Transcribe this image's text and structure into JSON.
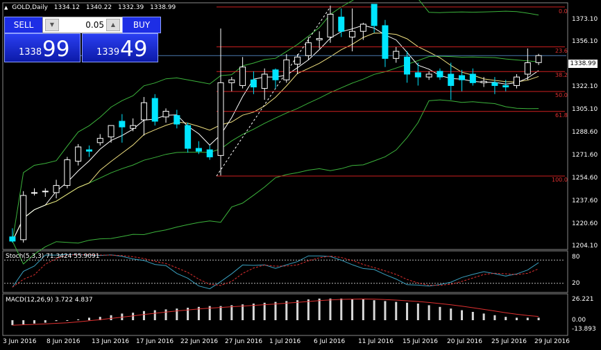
{
  "header": {
    "symbol": "GOLD,Daily",
    "open": "1334.12",
    "high": "1340.22",
    "low": "1332.39",
    "close": "1338.99"
  },
  "trade_panel": {
    "sell_label": "SELL",
    "buy_label": "BUY",
    "lot_value": "0.05",
    "sell_small": "1338",
    "sell_big": "99",
    "buy_small": "1339",
    "buy_big": "49"
  },
  "current_price_tag": "1338.99",
  "price_axis": [
    "1373.10",
    "1356.10",
    "1322.10",
    "1305.10",
    "1288.60",
    "1271.60",
    "1254.60",
    "1237.60",
    "1220.60",
    "1204.10"
  ],
  "fibonacci": [
    "0.0",
    "23.6",
    "38.2",
    "50.0",
    "61.8",
    "100.0"
  ],
  "stoch": {
    "label": "Stoch(5,3,3) 71.3424 55.9091",
    "levels": [
      "80",
      "20"
    ]
  },
  "macd": {
    "label": "MACD(12,26,9) 3.722 4.837",
    "levels": [
      "26.221",
      "0.00",
      "-13.893"
    ]
  },
  "date_axis": [
    "3 Jun 2016",
    "8 Jun 2016",
    "13 Jun 2016",
    "17 Jun 2016",
    "22 Jun 2016",
    "27 Jun 2016",
    "1 Jul 2016",
    "6 Jul 2016",
    "11 Jul 2016",
    "15 Jul 2016",
    "20 Jul 2016",
    "25 Jul 2016",
    "29 Jul 2016"
  ],
  "colors": {
    "bull": "#ffffff",
    "bear": "#00e5ff",
    "fib": "#d02020",
    "bands": "#3cb43c",
    "ma_fast": "#ffffff",
    "ma_slow": "#f0e080",
    "stoch_main": "#3aa0c0",
    "stoch_signal": "#e03030",
    "macd_hist": "#d8d8d8",
    "macd_signal": "#e03030"
  },
  "chart_data": {
    "type": "candlestick",
    "title": "GOLD,Daily",
    "ylim": [
      1204.1,
      1373.1
    ],
    "candles": [
      {
        "date": "2016-06-02",
        "o": 1212,
        "h": 1218,
        "l": 1208,
        "c": 1209
      },
      {
        "date": "2016-06-03",
        "o": 1210,
        "h": 1244,
        "l": 1208,
        "c": 1241
      },
      {
        "date": "2016-06-06",
        "o": 1243,
        "h": 1246,
        "l": 1241,
        "c": 1243
      },
      {
        "date": "2016-06-07",
        "o": 1244,
        "h": 1246,
        "l": 1240,
        "c": 1244
      },
      {
        "date": "2016-06-08",
        "o": 1243,
        "h": 1252,
        "l": 1239,
        "c": 1248
      },
      {
        "date": "2016-06-09",
        "o": 1248,
        "h": 1268,
        "l": 1246,
        "c": 1266
      },
      {
        "date": "2016-06-10",
        "o": 1265,
        "h": 1277,
        "l": 1262,
        "c": 1275
      },
      {
        "date": "2016-06-13",
        "o": 1273,
        "h": 1276,
        "l": 1268,
        "c": 1272
      },
      {
        "date": "2016-06-14",
        "o": 1278,
        "h": 1284,
        "l": 1276,
        "c": 1281
      },
      {
        "date": "2016-06-15",
        "o": 1282,
        "h": 1290,
        "l": 1278,
        "c": 1290
      },
      {
        "date": "2016-06-16",
        "o": 1293,
        "h": 1298,
        "l": 1278,
        "c": 1289
      },
      {
        "date": "2016-06-17",
        "o": 1288,
        "h": 1295,
        "l": 1286,
        "c": 1290
      },
      {
        "date": "2016-06-20",
        "o": 1294,
        "h": 1310,
        "l": 1283,
        "c": 1306
      },
      {
        "date": "2016-06-21",
        "o": 1309,
        "h": 1312,
        "l": 1290,
        "c": 1293
      },
      {
        "date": "2016-06-22",
        "o": 1296,
        "h": 1302,
        "l": 1292,
        "c": 1300
      },
      {
        "date": "2016-06-23",
        "o": 1297,
        "h": 1301,
        "l": 1288,
        "c": 1291
      },
      {
        "date": "2016-06-24",
        "o": 1290,
        "h": 1292,
        "l": 1271,
        "c": 1274
      },
      {
        "date": "2016-06-27",
        "o": 1274,
        "h": 1279,
        "l": 1270,
        "c": 1272
      },
      {
        "date": "2016-06-28",
        "o": 1273,
        "h": 1276,
        "l": 1266,
        "c": 1268
      },
      {
        "date": "2016-06-29",
        "o": 1269,
        "h": 1358,
        "l": 1255,
        "c": 1320
      },
      {
        "date": "2016-06-30",
        "o": 1320,
        "h": 1324,
        "l": 1314,
        "c": 1322
      },
      {
        "date": "2016-07-01",
        "o": 1318,
        "h": 1338,
        "l": 1316,
        "c": 1331
      },
      {
        "date": "2016-07-04",
        "o": 1322,
        "h": 1328,
        "l": 1312,
        "c": 1317
      },
      {
        "date": "2016-07-05",
        "o": 1316,
        "h": 1330,
        "l": 1308,
        "c": 1326
      },
      {
        "date": "2016-07-06",
        "o": 1329,
        "h": 1330,
        "l": 1316,
        "c": 1322
      },
      {
        "date": "2016-07-07",
        "o": 1322,
        "h": 1340,
        "l": 1320,
        "c": 1336
      },
      {
        "date": "2016-07-08",
        "o": 1333,
        "h": 1340,
        "l": 1326,
        "c": 1338
      },
      {
        "date": "2016-07-11",
        "o": 1339,
        "h": 1352,
        "l": 1336,
        "c": 1348
      },
      {
        "date": "2016-07-12",
        "o": 1350,
        "h": 1356,
        "l": 1344,
        "c": 1351
      },
      {
        "date": "2016-07-13",
        "o": 1352,
        "h": 1374,
        "l": 1348,
        "c": 1368
      },
      {
        "date": "2016-07-14",
        "o": 1366,
        "h": 1372,
        "l": 1352,
        "c": 1356
      },
      {
        "date": "2016-07-15",
        "o": 1352,
        "h": 1372,
        "l": 1342,
        "c": 1356
      },
      {
        "date": "2016-07-18",
        "o": 1356,
        "h": 1362,
        "l": 1350,
        "c": 1361
      },
      {
        "date": "2016-07-19",
        "o": 1375,
        "h": 1375,
        "l": 1355,
        "c": 1360
      },
      {
        "date": "2016-07-20",
        "o": 1360,
        "h": 1364,
        "l": 1331,
        "c": 1337
      },
      {
        "date": "2016-07-21",
        "o": 1337,
        "h": 1345,
        "l": 1334,
        "c": 1342
      },
      {
        "date": "2016-07-22",
        "o": 1338,
        "h": 1342,
        "l": 1320,
        "c": 1326
      },
      {
        "date": "2016-07-25",
        "o": 1327,
        "h": 1334,
        "l": 1318,
        "c": 1324
      },
      {
        "date": "2016-07-26",
        "o": 1324,
        "h": 1328,
        "l": 1322,
        "c": 1326
      },
      {
        "date": "2016-07-27",
        "o": 1328,
        "h": 1330,
        "l": 1322,
        "c": 1324
      },
      {
        "date": "2016-07-28",
        "o": 1326,
        "h": 1334,
        "l": 1308,
        "c": 1318
      },
      {
        "date": "2016-07-29",
        "o": 1325,
        "h": 1329,
        "l": 1314,
        "c": 1322
      },
      {
        "date": "2016-08-01",
        "o": 1326,
        "h": 1330,
        "l": 1318,
        "c": 1320
      },
      {
        "date": "2016-08-02",
        "o": 1320,
        "h": 1324,
        "l": 1317,
        "c": 1321
      },
      {
        "date": "2016-08-03",
        "o": 1320,
        "h": 1324,
        "l": 1312,
        "c": 1318
      },
      {
        "date": "2016-08-04",
        "o": 1318,
        "h": 1322,
        "l": 1314,
        "c": 1317
      },
      {
        "date": "2016-08-05",
        "o": 1318,
        "h": 1326,
        "l": 1316,
        "c": 1324
      },
      {
        "date": "2016-08-08",
        "o": 1326,
        "h": 1344,
        "l": 1322,
        "c": 1334
      },
      {
        "date": "2016-08-09",
        "o": 1334.12,
        "h": 1340.22,
        "l": 1332.39,
        "c": 1338.99
      }
    ],
    "macd_hist": [
      -6,
      -5,
      -4,
      -3,
      -1,
      0,
      1,
      3,
      4,
      6,
      8,
      9,
      11,
      12,
      13,
      14,
      15,
      16,
      17,
      17,
      18,
      19,
      20,
      21,
      22,
      23,
      24,
      25,
      26,
      26,
      26,
      25,
      25,
      24,
      23,
      22,
      21,
      20,
      18,
      16,
      14,
      12,
      10,
      8,
      6,
      4,
      3,
      3,
      3
    ],
    "stoch_levels": [
      80,
      20
    ]
  }
}
